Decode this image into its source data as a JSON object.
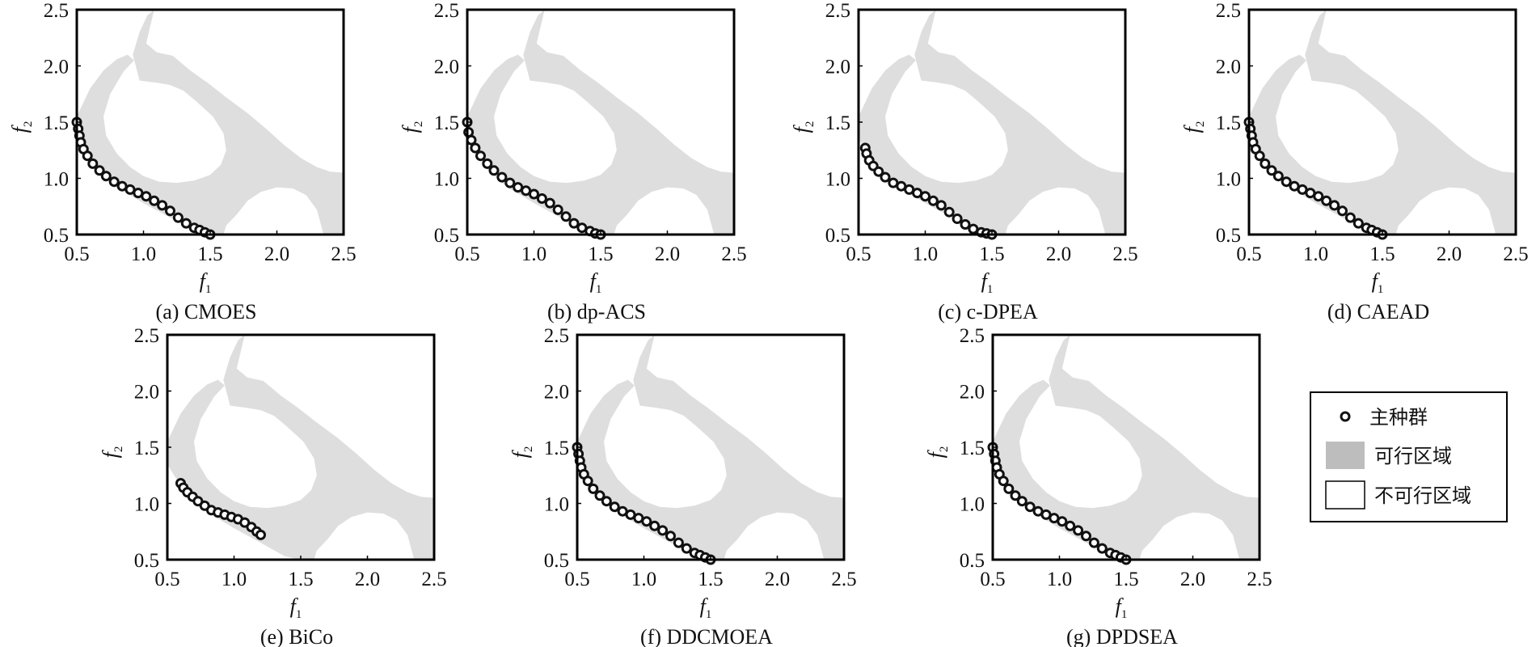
{
  "figure": {
    "legend": {
      "items": [
        {
          "label": "主种群",
          "kind": "marker"
        },
        {
          "label": "可行区域",
          "kind": "feasible"
        },
        {
          "label": "不可行区域",
          "kind": "infeasible"
        }
      ]
    },
    "colors": {
      "feasible": "#dedede",
      "legend_feasible": "#bdbdbd",
      "marker_edge": "#111111",
      "marker_face": "#ffffff",
      "axis": "#000000"
    }
  },
  "chart_data": [
    {
      "type": "scatter",
      "caption": "(a) CMOES",
      "xlabel": "f",
      "xlabel_sub": "1",
      "ylabel": "f",
      "ylabel_sub": "2",
      "xlim": [
        0.5,
        2.5
      ],
      "ylim": [
        0.5,
        2.5
      ],
      "xticks": [
        "0.5",
        "1.0",
        "1.5",
        "2.0",
        "2.5"
      ],
      "yticks": [
        "0.5",
        "1.0",
        "1.5",
        "2.0",
        "2.5"
      ],
      "series": [
        {
          "name": "主种群",
          "x": [
            0.5,
            0.51,
            0.52,
            0.53,
            0.55,
            0.58,
            0.62,
            0.67,
            0.72,
            0.78,
            0.84,
            0.9,
            0.96,
            1.02,
            1.08,
            1.14,
            1.2,
            1.26,
            1.32,
            1.38,
            1.42,
            1.46,
            1.5
          ],
          "y": [
            1.5,
            1.44,
            1.38,
            1.32,
            1.26,
            1.2,
            1.13,
            1.07,
            1.02,
            0.97,
            0.93,
            0.9,
            0.87,
            0.84,
            0.8,
            0.76,
            0.71,
            0.65,
            0.6,
            0.56,
            0.54,
            0.52,
            0.5
          ]
        }
      ]
    },
    {
      "type": "scatter",
      "caption": "(b) dp-ACS",
      "xlabel": "f",
      "xlabel_sub": "1",
      "ylabel": "f",
      "ylabel_sub": "2",
      "xlim": [
        0.5,
        2.5
      ],
      "ylim": [
        0.5,
        2.5
      ],
      "xticks": [
        "0.5",
        "1.0",
        "1.5",
        "2.0",
        "2.5"
      ],
      "yticks": [
        "0.5",
        "1.0",
        "1.5",
        "2.0",
        "2.5"
      ],
      "series": [
        {
          "name": "主种群",
          "x": [
            0.5,
            0.51,
            0.53,
            0.56,
            0.6,
            0.65,
            0.7,
            0.76,
            0.82,
            0.88,
            0.94,
            1.0,
            1.06,
            1.12,
            1.18,
            1.24,
            1.3,
            1.36,
            1.42,
            1.46,
            1.5
          ],
          "y": [
            1.5,
            1.41,
            1.34,
            1.27,
            1.2,
            1.13,
            1.07,
            1.01,
            0.96,
            0.92,
            0.89,
            0.86,
            0.82,
            0.78,
            0.72,
            0.66,
            0.6,
            0.56,
            0.53,
            0.51,
            0.5
          ]
        }
      ]
    },
    {
      "type": "scatter",
      "caption": "(c) c-DPEA",
      "xlabel": "f",
      "xlabel_sub": "1",
      "ylabel": "f",
      "ylabel_sub": "2",
      "xlim": [
        0.5,
        2.5
      ],
      "ylim": [
        0.5,
        2.5
      ],
      "xticks": [
        "0.5",
        "1.0",
        "1.5",
        "2.0",
        "2.5"
      ],
      "yticks": [
        "0.5",
        "1.0",
        "1.5",
        "2.0",
        "2.5"
      ],
      "series": [
        {
          "name": "主种群",
          "x": [
            0.55,
            0.56,
            0.58,
            0.61,
            0.65,
            0.7,
            0.76,
            0.82,
            0.88,
            0.94,
            1.0,
            1.06,
            1.12,
            1.18,
            1.24,
            1.3,
            1.36,
            1.42,
            1.46,
            1.5
          ],
          "y": [
            1.27,
            1.22,
            1.16,
            1.11,
            1.06,
            1.01,
            0.96,
            0.93,
            0.9,
            0.87,
            0.84,
            0.8,
            0.76,
            0.7,
            0.64,
            0.59,
            0.55,
            0.52,
            0.51,
            0.5
          ]
        }
      ]
    },
    {
      "type": "scatter",
      "caption": "(d) CAEAD",
      "xlabel": "f",
      "xlabel_sub": "1",
      "ylabel": "f",
      "ylabel_sub": "2",
      "xlim": [
        0.5,
        2.5
      ],
      "ylim": [
        0.5,
        2.5
      ],
      "xticks": [
        "0.5",
        "1.0",
        "1.5",
        "2.0",
        "2.5"
      ],
      "yticks": [
        "0.5",
        "1.0",
        "1.5",
        "2.0",
        "2.5"
      ],
      "series": [
        {
          "name": "主种群",
          "x": [
            0.5,
            0.51,
            0.52,
            0.53,
            0.55,
            0.58,
            0.62,
            0.67,
            0.72,
            0.78,
            0.84,
            0.9,
            0.96,
            1.02,
            1.08,
            1.14,
            1.2,
            1.26,
            1.32,
            1.38,
            1.42,
            1.46,
            1.5
          ],
          "y": [
            1.5,
            1.44,
            1.38,
            1.32,
            1.26,
            1.2,
            1.13,
            1.07,
            1.02,
            0.97,
            0.93,
            0.9,
            0.87,
            0.84,
            0.8,
            0.76,
            0.71,
            0.65,
            0.6,
            0.56,
            0.54,
            0.52,
            0.5
          ]
        }
      ]
    },
    {
      "type": "scatter",
      "caption": "(e) BiCo",
      "xlabel": "f",
      "xlabel_sub": "1",
      "ylabel": "f",
      "ylabel_sub": "2",
      "xlim": [
        0.5,
        2.5
      ],
      "ylim": [
        0.5,
        2.5
      ],
      "xticks": [
        "0.5",
        "1.0",
        "1.5",
        "2.0",
        "2.5"
      ],
      "yticks": [
        "0.5",
        "1.0",
        "1.5",
        "2.0",
        "2.5"
      ],
      "series": [
        {
          "name": "主种群",
          "x": [
            0.6,
            0.62,
            0.65,
            0.69,
            0.73,
            0.78,
            0.83,
            0.88,
            0.93,
            0.98,
            1.03,
            1.08,
            1.13,
            1.17,
            1.2
          ],
          "y": [
            1.18,
            1.14,
            1.1,
            1.06,
            1.02,
            0.98,
            0.94,
            0.92,
            0.9,
            0.88,
            0.86,
            0.83,
            0.79,
            0.75,
            0.72
          ]
        }
      ]
    },
    {
      "type": "scatter",
      "caption": "(f) DDCMOEA",
      "xlabel": "f",
      "xlabel_sub": "1",
      "ylabel": "f",
      "ylabel_sub": "2",
      "xlim": [
        0.5,
        2.5
      ],
      "ylim": [
        0.5,
        2.5
      ],
      "xticks": [
        "0.5",
        "1.0",
        "1.5",
        "2.0",
        "2.5"
      ],
      "yticks": [
        "0.5",
        "1.0",
        "1.5",
        "2.0",
        "2.5"
      ],
      "series": [
        {
          "name": "主种群",
          "x": [
            0.5,
            0.51,
            0.52,
            0.53,
            0.55,
            0.58,
            0.62,
            0.67,
            0.72,
            0.78,
            0.84,
            0.9,
            0.96,
            1.02,
            1.08,
            1.14,
            1.2,
            1.26,
            1.32,
            1.38,
            1.42,
            1.46,
            1.5
          ],
          "y": [
            1.5,
            1.44,
            1.38,
            1.32,
            1.26,
            1.2,
            1.13,
            1.07,
            1.02,
            0.97,
            0.93,
            0.9,
            0.87,
            0.84,
            0.8,
            0.76,
            0.71,
            0.65,
            0.6,
            0.56,
            0.54,
            0.52,
            0.5
          ]
        }
      ]
    },
    {
      "type": "scatter",
      "caption": "(g) DPDSEA",
      "xlabel": "f",
      "xlabel_sub": "1",
      "ylabel": "f",
      "ylabel_sub": "2",
      "xlim": [
        0.5,
        2.5
      ],
      "ylim": [
        0.5,
        2.5
      ],
      "xticks": [
        "0.5",
        "1.0",
        "1.5",
        "2.0",
        "2.5"
      ],
      "yticks": [
        "0.5",
        "1.0",
        "1.5",
        "2.0",
        "2.5"
      ],
      "series": [
        {
          "name": "主种群",
          "x": [
            0.5,
            0.51,
            0.52,
            0.53,
            0.55,
            0.58,
            0.62,
            0.67,
            0.72,
            0.78,
            0.84,
            0.9,
            0.96,
            1.02,
            1.08,
            1.14,
            1.2,
            1.26,
            1.32,
            1.38,
            1.42,
            1.46,
            1.5
          ],
          "y": [
            1.5,
            1.44,
            1.38,
            1.32,
            1.26,
            1.2,
            1.13,
            1.07,
            1.02,
            0.97,
            0.93,
            0.9,
            0.87,
            0.84,
            0.8,
            0.76,
            0.71,
            0.65,
            0.6,
            0.56,
            0.54,
            0.52,
            0.5
          ]
        }
      ]
    }
  ]
}
